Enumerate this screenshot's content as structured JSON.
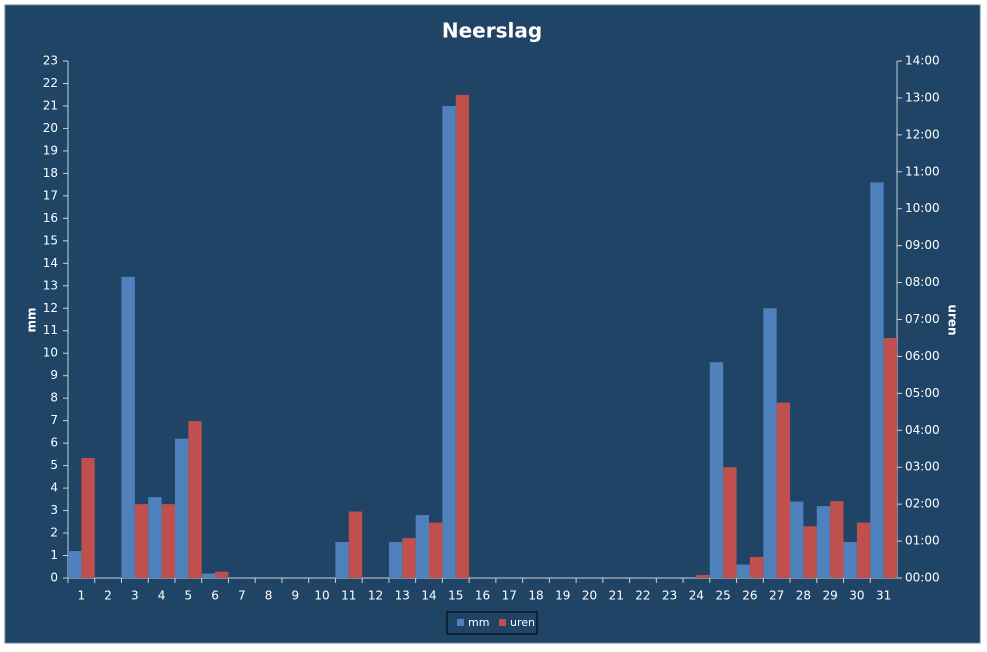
{
  "chart_data": {
    "type": "bar",
    "title": "Neerslag",
    "y_label": "mm",
    "y2_label": "uren",
    "categories": [
      "1",
      "2",
      "3",
      "4",
      "5",
      "6",
      "7",
      "8",
      "9",
      "10",
      "11",
      "12",
      "13",
      "14",
      "15",
      "16",
      "17",
      "18",
      "19",
      "20",
      "21",
      "22",
      "23",
      "24",
      "25",
      "26",
      "27",
      "28",
      "29",
      "30",
      "31"
    ],
    "series": [
      {
        "name": "mm",
        "color": "#4f81bd",
        "values": [
          1.2,
          0,
          13.4,
          3.6,
          6.2,
          0.2,
          0,
          0,
          0,
          0,
          1.6,
          0,
          1.6,
          2.8,
          21,
          0,
          0,
          0,
          0,
          0,
          0,
          0,
          0,
          0,
          9.6,
          0.6,
          12,
          3.4,
          3.2,
          1.6,
          17.6
        ]
      },
      {
        "name": "uren",
        "color": "#c0504d",
        "axis": "y2",
        "values": [
          3.25,
          0,
          2,
          2,
          4.25,
          0.17,
          0,
          0,
          0,
          0,
          1.8,
          0,
          1.08,
          1.5,
          13.08,
          0,
          0,
          0,
          0,
          0,
          0,
          0,
          0,
          0.08,
          3,
          0.57,
          4.75,
          1.4,
          2.08,
          1.5,
          6.5
        ]
      }
    ],
    "ylim": [
      0,
      23
    ],
    "yticks": [
      0,
      1,
      2,
      3,
      4,
      5,
      6,
      7,
      8,
      9,
      10,
      11,
      12,
      13,
      14,
      15,
      16,
      17,
      18,
      19,
      20,
      21,
      22,
      23
    ],
    "y2lim": [
      0,
      14
    ],
    "y2ticks": [
      {
        "value": 0,
        "label": "00:00"
      },
      {
        "value": 1,
        "label": "01:00"
      },
      {
        "value": 2,
        "label": "02:00"
      },
      {
        "value": 3,
        "label": "03:00"
      },
      {
        "value": 4,
        "label": "04:00"
      },
      {
        "value": 5,
        "label": "05:00"
      },
      {
        "value": 6,
        "label": "06:00"
      },
      {
        "value": 7,
        "label": "07:00"
      },
      {
        "value": 8,
        "label": "08:00"
      },
      {
        "value": 9,
        "label": "09:00"
      },
      {
        "value": 10,
        "label": "10:00"
      },
      {
        "value": 11,
        "label": "11:00"
      },
      {
        "value": 12,
        "label": "12:00"
      },
      {
        "value": 13,
        "label": "13:00"
      },
      {
        "value": 14,
        "label": "14:00"
      }
    ],
    "grid": false,
    "legend": "bottom"
  }
}
